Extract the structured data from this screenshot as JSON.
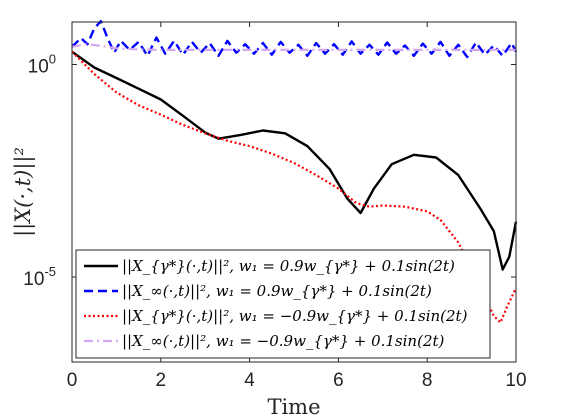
{
  "chart_data": {
    "type": "line",
    "xlabel": "Time",
    "ylabel": "||X(·,t)||²",
    "xlim": [
      0,
      10
    ],
    "ylim": [
      1e-07,
      10
    ],
    "yscale": "log",
    "grid": false,
    "legend_position": "bottom-left",
    "x_ticks": [
      {
        "value": 0,
        "label": "0"
      },
      {
        "value": 2,
        "label": "2"
      },
      {
        "value": 4,
        "label": "4"
      },
      {
        "value": 6,
        "label": "6"
      },
      {
        "value": 8,
        "label": "8"
      },
      {
        "value": 10,
        "label": "10"
      }
    ],
    "y_ticks": [
      {
        "value": 1,
        "label": "10",
        "exp": "0"
      },
      {
        "value": 1e-05,
        "label": "10",
        "exp": "-5"
      }
    ],
    "series": [
      {
        "name": "||X_{γ*}(·,t)||², w₁ = 0.9w_{γ*} + 0.1sin(2t)",
        "color": "#000000",
        "dash": "solid",
        "x": [
          0,
          0.5,
          1,
          1.5,
          2,
          2.5,
          3,
          3.3,
          3.8,
          4.3,
          4.8,
          5.3,
          5.8,
          6.2,
          6.5,
          6.8,
          7.2,
          7.7,
          8.2,
          8.7,
          9.2,
          9.5,
          9.7,
          9.85,
          10
        ],
        "y": [
          2.0,
          0.85,
          0.48,
          0.27,
          0.15,
          0.062,
          0.025,
          0.018,
          0.022,
          0.028,
          0.024,
          0.012,
          0.0035,
          0.0007,
          0.00032,
          0.0012,
          0.0045,
          0.0075,
          0.0065,
          0.0025,
          0.0004,
          0.00012,
          1.5e-05,
          3e-05,
          0.0002
        ]
      },
      {
        "name": "||X_∞(·,t)||², w₁ = 0.9w_{γ*} + 0.1sin(2t)",
        "color": "#0000ff",
        "dash": "dashed",
        "x": [
          0,
          0.2,
          0.35,
          0.5,
          0.65,
          0.8,
          0.95,
          1.1,
          1.3,
          1.5,
          1.7,
          1.9,
          2.1,
          2.3,
          2.5,
          2.7,
          2.9,
          3.1,
          3.3,
          3.5,
          3.7,
          3.9,
          4.1,
          4.3,
          4.5,
          4.7,
          4.9,
          5.1,
          5.3,
          5.5,
          5.7,
          5.9,
          6.1,
          6.3,
          6.5,
          6.7,
          6.9,
          7.1,
          7.3,
          7.5,
          7.7,
          7.9,
          8.1,
          8.3,
          8.5,
          8.7,
          8.9,
          9.1,
          9.3,
          9.5,
          9.7,
          9.9,
          10
        ],
        "y": [
          2.6,
          4.2,
          3.0,
          7.0,
          10.5,
          4.2,
          1.9,
          3.6,
          2.2,
          3.4,
          1.6,
          4.3,
          1.8,
          3.6,
          1.7,
          3.4,
          1.9,
          3.2,
          1.6,
          3.6,
          1.9,
          3.0,
          1.8,
          3.2,
          1.7,
          3.4,
          1.9,
          2.9,
          1.6,
          3.2,
          1.8,
          3.0,
          1.7,
          3.5,
          1.8,
          2.9,
          1.7,
          3.3,
          1.8,
          2.8,
          1.6,
          3.1,
          1.8,
          3.4,
          1.6,
          2.9,
          1.5,
          3.3,
          1.7,
          2.8,
          1.6,
          3.2,
          2.0
        ]
      },
      {
        "name": "||X_{γ*}(·,t)||², w₁ = −0.9w_{γ*} + 0.1sin(2t)",
        "color": "#ff0000",
        "dash": "dotted",
        "x": [
          0,
          0.5,
          1,
          1.5,
          2,
          2.5,
          3,
          3.5,
          4,
          4.5,
          5,
          5.5,
          6,
          6.4,
          6.7,
          7,
          7.5,
          8,
          8.3,
          8.7,
          9,
          9.3,
          9.5,
          9.65,
          9.8,
          10
        ],
        "y": [
          2.0,
          0.6,
          0.22,
          0.11,
          0.066,
          0.038,
          0.024,
          0.016,
          0.012,
          0.008,
          0.0048,
          0.0025,
          0.0012,
          0.00055,
          0.00045,
          0.00048,
          0.00045,
          0.00035,
          0.00022,
          6.5e-05,
          1.6e-05,
          3.5e-06,
          1.2e-06,
          8.5e-07,
          2e-06,
          5.5e-06
        ]
      },
      {
        "name": "||X_∞(·,t)||², w₁ = −0.9w_{γ*} + 0.1sin(2t)",
        "color": "#d5a7f2",
        "dash": "dashdot",
        "x": [
          0,
          0.3,
          0.6,
          1,
          1.5,
          2,
          2.5,
          3,
          4,
          5,
          6,
          7,
          8,
          9,
          10
        ],
        "y": [
          2.6,
          3.0,
          2.8,
          2.4,
          2.25,
          2.2,
          2.2,
          2.2,
          2.2,
          2.2,
          2.2,
          2.2,
          2.2,
          2.2,
          2.2
        ]
      }
    ]
  }
}
